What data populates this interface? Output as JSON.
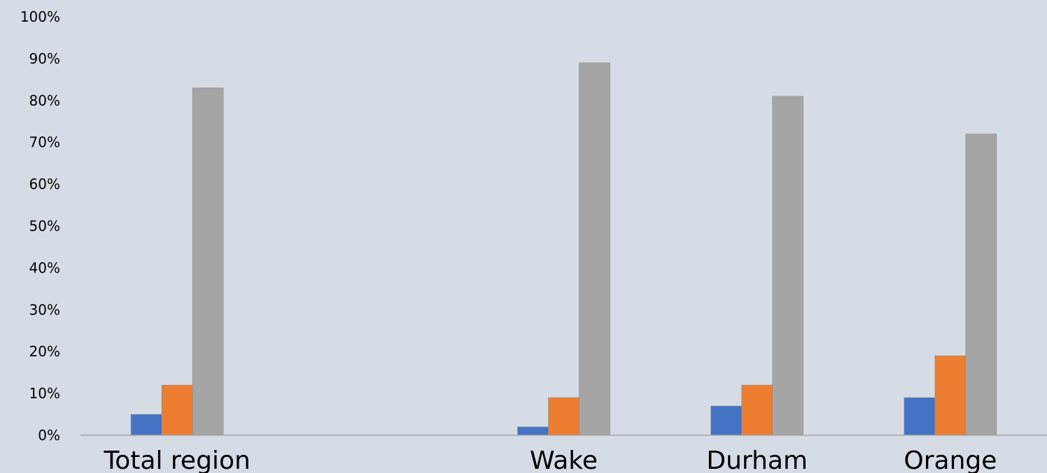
{
  "chart_data": {
    "type": "bar",
    "categories": [
      "Total region",
      "",
      "Wake",
      "Durham",
      "Orange"
    ],
    "series": [
      {
        "values": [
          5,
          null,
          2,
          7,
          9
        ],
        "color": "#4472c4"
      },
      {
        "values": [
          12,
          null,
          9,
          12,
          19
        ],
        "color": "#ed7d31"
      },
      {
        "values": [
          83,
          null,
          89,
          81,
          72
        ],
        "color": "#a5a5a5"
      }
    ],
    "y_ticks": [
      "0%",
      "10%",
      "20%",
      "30%",
      "40%",
      "50%",
      "60%",
      "70%",
      "80%",
      "90%",
      "100%"
    ],
    "ylim": [
      0,
      100
    ],
    "grid": false,
    "legend": "none",
    "xlabel": "",
    "ylabel": ""
  }
}
